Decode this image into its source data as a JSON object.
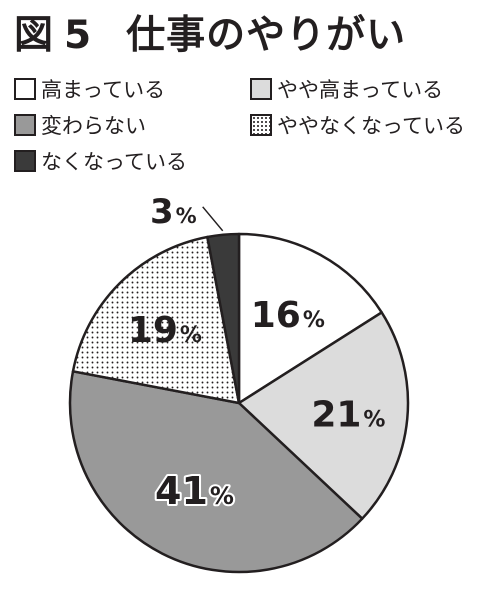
{
  "figure": {
    "label": "図",
    "number": "5",
    "title": "仕事のやりがい"
  },
  "chart_data": {
    "type": "pie",
    "title": "図5 仕事のやりがい",
    "slices": [
      {
        "label": "高まっている",
        "value": 16,
        "display": "16",
        "unit": "%",
        "color": "#ffffff",
        "fill": "solid"
      },
      {
        "label": "やや高まっている",
        "value": 21,
        "display": "21",
        "unit": "%",
        "color": "#dcdcdc",
        "fill": "solid"
      },
      {
        "label": "変わらない",
        "value": 41,
        "display": "41",
        "unit": "%",
        "color": "#999999",
        "fill": "solid"
      },
      {
        "label": "ややなくなっている",
        "value": 19,
        "display": "19",
        "unit": "%",
        "color": "#ffffff",
        "fill": "dots"
      },
      {
        "label": "なくなっている",
        "value": 3,
        "display": "3",
        "unit": "%",
        "color": "#3a3a3a",
        "fill": "solid"
      }
    ],
    "start": "12 o'clock",
    "direction": "clockwise",
    "legend_position": "top",
    "outline_color": "#231f20"
  }
}
